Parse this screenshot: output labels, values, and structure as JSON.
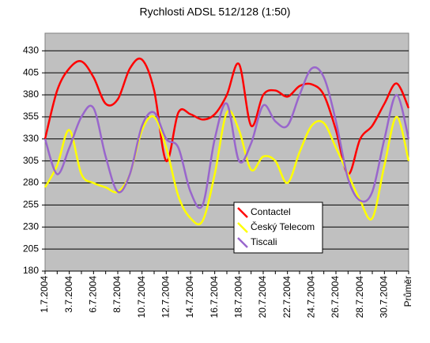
{
  "chart_data": {
    "type": "line",
    "title": "Rychlosti ADSL 512/128 (1:50)",
    "categories": [
      "1.7.2004",
      null,
      "3.7.2004",
      null,
      "6.7.2004",
      null,
      "8.7.2004",
      null,
      "10.7.2004",
      null,
      "12.7.2004",
      null,
      "14.7.2004",
      null,
      "16.7.2004",
      null,
      "18.7.2004",
      null,
      "20.7.2004",
      null,
      "22.7.2004",
      null,
      "24.7.2004",
      null,
      "26.7.2004",
      null,
      "28.7.2004",
      null,
      "30.7.2004",
      null,
      "Průměr"
    ],
    "series": [
      {
        "name": "Contactel",
        "color": "#ff0000",
        "values": [
          330,
          385,
          410,
          418,
          400,
          370,
          375,
          410,
          420,
          385,
          305,
          360,
          358,
          352,
          358,
          380,
          415,
          345,
          380,
          385,
          378,
          390,
          392,
          380,
          340,
          290,
          330,
          345,
          370,
          393,
          365
        ]
      },
      {
        "name": "Český Telecom",
        "color": "#ffff00",
        "values": [
          275,
          300,
          340,
          290,
          280,
          275,
          270,
          290,
          340,
          355,
          320,
          265,
          240,
          237,
          290,
          360,
          340,
          295,
          310,
          305,
          280,
          315,
          345,
          348,
          320,
          290,
          260,
          240,
          300,
          355,
          305
        ]
      },
      {
        "name": "Tiscali",
        "color": "#9966cc",
        "values": [
          330,
          290,
          320,
          355,
          365,
          310,
          270,
          290,
          345,
          360,
          330,
          320,
          270,
          255,
          330,
          370,
          305,
          325,
          368,
          350,
          345,
          380,
          410,
          400,
          350,
          285,
          260,
          270,
          330,
          380,
          330
        ]
      }
    ],
    "ylim": [
      180,
      450
    ],
    "yticks": [
      180,
      205,
      230,
      255,
      280,
      305,
      330,
      355,
      380,
      405,
      430
    ],
    "grid": true
  }
}
